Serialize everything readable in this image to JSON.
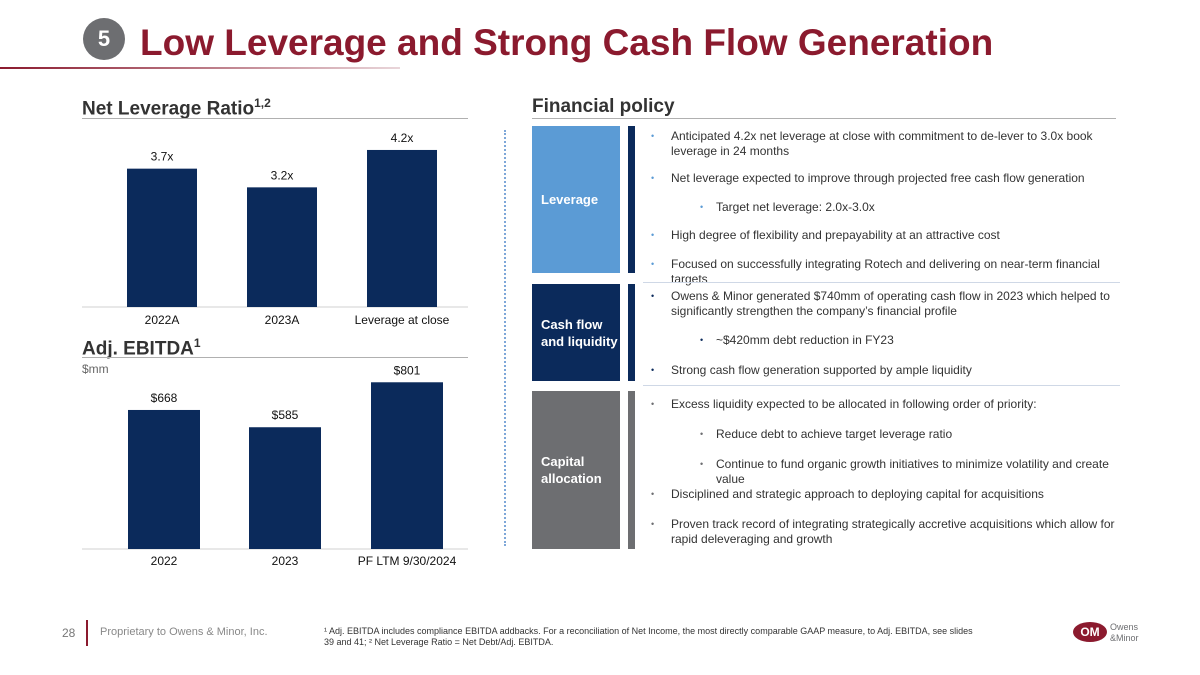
{
  "header": {
    "badge": "5",
    "title": "Low Leverage and Strong Cash Flow Generation"
  },
  "leverage_section": {
    "title": "Net Leverage Ratio",
    "title_sup": "1,2"
  },
  "ebitda_section": {
    "title": "Adj. EBITDA",
    "title_sup": "1",
    "unit": "$mm"
  },
  "chart_data": [
    {
      "type": "bar",
      "title": "Net Leverage Ratio",
      "categories": [
        "2022A",
        "2023A",
        "Leverage at close"
      ],
      "values": [
        3.7,
        3.2,
        4.2
      ],
      "labels": [
        "3.7x",
        "3.2x",
        "4.2x"
      ],
      "color": "#0b2a5b",
      "ylim": [
        0,
        4.6
      ]
    },
    {
      "type": "bar",
      "title": "Adj. EBITDA",
      "categories": [
        "2022",
        "2023",
        "PF LTM 9/30/2024"
      ],
      "values": [
        668,
        585,
        801
      ],
      "labels": [
        "$668",
        "$585",
        "$801"
      ],
      "color": "#0b2a5b",
      "ylim": [
        0,
        860
      ]
    }
  ],
  "policy": {
    "title": "Financial policy",
    "groups": [
      {
        "label": "Leverage",
        "color": "#5b9bd5",
        "barColor": "#0b2a5b",
        "items": [
          {
            "text": "Anticipated 4.2x net leverage at close with commitment to de-lever to 3.0x book leverage in 24 months"
          },
          {
            "text": "Net leverage expected to improve through projected free cash flow generation"
          },
          {
            "text": "Target net leverage: 2.0x-3.0x"
          },
          {
            "text": "High degree of flexibility and prepayability at an attractive cost"
          },
          {
            "text": "Focused on successfully integrating Rotech and delivering on near-term financial targets"
          }
        ]
      },
      {
        "label": "Cash flow and liquidity",
        "color": "#0b2a5b",
        "barColor": "#0b2a5b",
        "items": [
          {
            "text": "Owens & Minor generated $740mm of operating cash flow in 2023 which helped to significantly strengthen the company’s financial profile"
          },
          {
            "text": "~$420mm debt reduction in FY23"
          },
          {
            "text": "Strong cash flow generation supported by ample liquidity"
          }
        ]
      },
      {
        "label": "Capital allocation",
        "color": "#6d6e71",
        "barColor": "#6d6e71",
        "items": [
          {
            "text": "Excess liquidity expected to be allocated in following order of priority:"
          },
          {
            "text": "Reduce debt to achieve target leverage ratio"
          },
          {
            "text": "Continue to fund organic growth initiatives to minimize volatility and create value"
          },
          {
            "text": "Disciplined and strategic approach to deploying capital for acquisitions"
          },
          {
            "text": "Proven track record of integrating strategically accretive acquisitions which allow for rapid deleveraging and growth"
          }
        ]
      }
    ]
  },
  "footer": {
    "page": "28",
    "proprietary": "Proprietary to Owens & Minor, Inc.",
    "footnote": "¹ Adj. EBITDA includes compliance EBITDA addbacks. For a reconciliation of Net Income, the most directly comparable GAAP measure, to Adj. EBITDA, see slides 39 and 41; ² Net Leverage Ratio = Net Debt/Adj. EBITDA.",
    "logo_text_1": "Owens",
    "logo_text_2": "&Minor",
    "logo_mark": "OM"
  }
}
